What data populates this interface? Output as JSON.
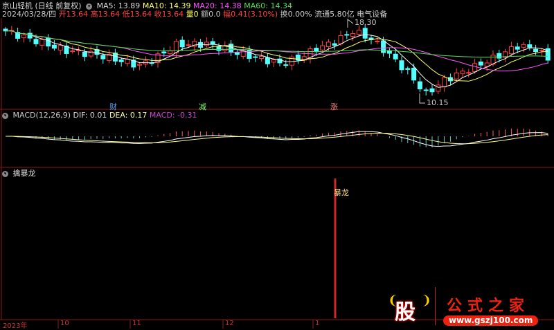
{
  "header": {
    "stock_name": "京山轻机",
    "period": "(日线 前复权)",
    "ma5": "MA5: 13.89",
    "ma10": "MA10: 14.39",
    "ma20": "MA20: 14.38",
    "ma60": "MA60: 14.34",
    "date": "2024/03/28/四",
    "open": "开13.64",
    "high": "高13.64",
    "low": "低13.64",
    "close": "收13.64",
    "volume": "量0",
    "amount": "额0.0",
    "change": "幅0.41(3.10%)",
    "turnover": "换0.00%",
    "float": "流通5.80亿",
    "sector": "电气设备"
  },
  "price_pane": {
    "high_mark": "18.30",
    "low_mark": "10.15",
    "signals": [
      "财",
      "减",
      "涨"
    ],
    "key_closes": [
      [
        0,
        17.4
      ],
      [
        4,
        16.6
      ],
      [
        10,
        15.4
      ],
      [
        15,
        15.0
      ],
      [
        22,
        13.9
      ],
      [
        25,
        14.8
      ],
      [
        28,
        16.0
      ],
      [
        33,
        16.1
      ],
      [
        38,
        15.2
      ],
      [
        45,
        14.1
      ],
      [
        48,
        14.6
      ],
      [
        51,
        15.6
      ],
      [
        54,
        16.3
      ],
      [
        57,
        17.4
      ],
      [
        60,
        16.6
      ],
      [
        63,
        15.0
      ],
      [
        66,
        13.2
      ],
      [
        69,
        11.0
      ],
      [
        72,
        12.4
      ],
      [
        76,
        13.5
      ],
      [
        80,
        14.6
      ],
      [
        84,
        15.9
      ],
      [
        87,
        15.6
      ],
      [
        89,
        14.6
      ]
    ]
  },
  "macd_pane": {
    "title": "MACD(12,26,9)",
    "dif": "DIF: 0.01",
    "dea": "DEA: 0.17",
    "macd": "MACD: -0.31"
  },
  "indicator_pane": {
    "title": "擒暴龙",
    "signal_label": "暴龙"
  },
  "date_axis": [
    "2023年",
    "10",
    "11",
    "12",
    "1"
  ],
  "watermark": {
    "gu": "股",
    "name": "公式之家",
    "url": "www.gszj100.com"
  },
  "colors": {
    "up": "#ff4040",
    "down": "#54ffff",
    "ma5": "#ffffff",
    "ma10": "#ffff66",
    "ma20": "#ff55ff",
    "ma60": "#55dd55",
    "border": "#8b1a1a"
  }
}
